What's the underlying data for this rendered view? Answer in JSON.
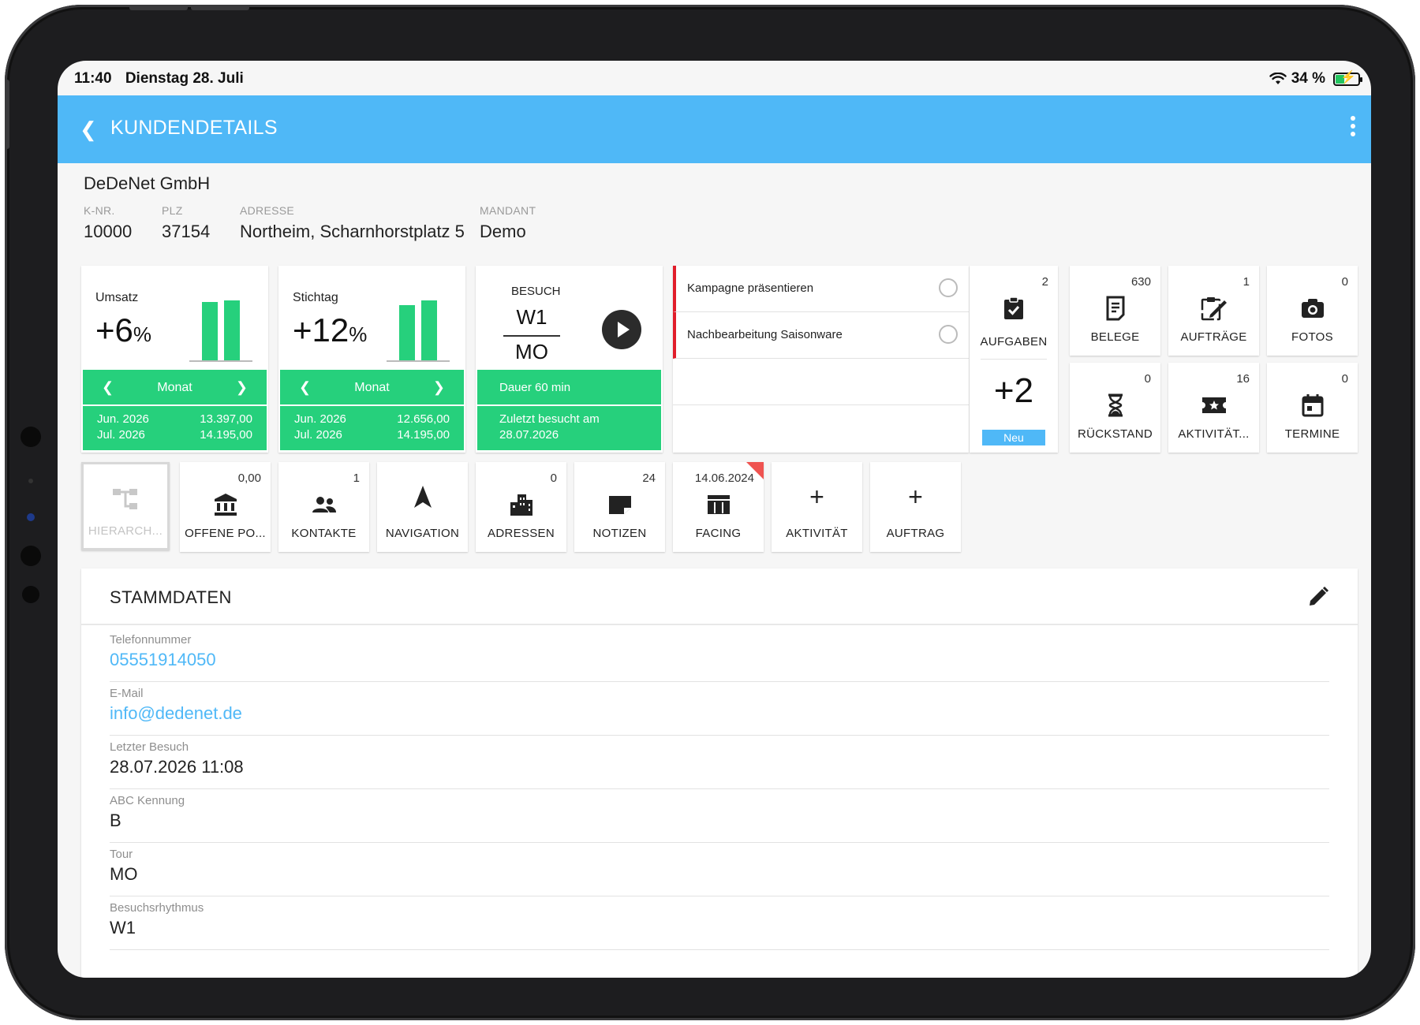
{
  "status": {
    "time": "11:40",
    "date": "Dienstag 28. Juli",
    "battery": "34 %"
  },
  "appbar": {
    "title": "KUNDENDETAILS"
  },
  "customer": {
    "name": "DeDeNet GmbH",
    "fields": [
      {
        "label": "K-NR.",
        "value": "10000"
      },
      {
        "label": "PLZ",
        "value": "37154"
      },
      {
        "label": "ADRESSE",
        "value": "Northeim, Scharnhorstplatz 5"
      },
      {
        "label": "MANDANT",
        "value": "Demo"
      }
    ]
  },
  "kpi_cards": [
    {
      "label": "Umsatz",
      "value": "+6",
      "unit": "%",
      "period": "Monat",
      "bar_heights": [
        0.82,
        0.85
      ],
      "rows": [
        {
          "period": "Jun. 2026",
          "amount": "13.397,00"
        },
        {
          "period": "Jul. 2026",
          "amount": "14.195,00"
        }
      ]
    },
    {
      "label": "Stichtag",
      "value": "+12",
      "unit": "%",
      "period": "Monat",
      "bar_heights": [
        0.78,
        0.85
      ],
      "rows": [
        {
          "period": "Jun. 2026",
          "amount": "12.656,00"
        },
        {
          "period": "Jul. 2026",
          "amount": "14.195,00"
        }
      ]
    }
  ],
  "visit": {
    "label": "BESUCH",
    "rhythm": "W1",
    "tour": "MO",
    "duration": "Dauer 60 min",
    "last_visit_label": "Zuletzt besucht am",
    "last_visit_date": "28.07.2026"
  },
  "tasks": {
    "items": [
      "Kampagne präsentieren",
      "Nachbearbeitung Saisonware"
    ],
    "count": "2",
    "label": "AUFGABEN",
    "new_count": "+2",
    "new_label": "Neu"
  },
  "tiles_top": [
    {
      "count": "630",
      "label": "BELEGE",
      "icon": "receipt-icon"
    },
    {
      "count": "1",
      "label": "AUFTRÄGE",
      "icon": "order-edit-icon"
    },
    {
      "count": "0",
      "label": "FOTOS",
      "icon": "camera-icon"
    },
    {
      "count": "0",
      "label": "RÜCKSTAND",
      "icon": "hourglass-icon"
    },
    {
      "count": "16",
      "label": "AKTIVITÄT...",
      "icon": "ticket-icon"
    },
    {
      "count": "0",
      "label": "TERMINE",
      "icon": "calendar-icon"
    }
  ],
  "tiles_bottom": [
    {
      "count": "",
      "label": "HIERARCH...",
      "icon": "hierarchy-icon"
    },
    {
      "count": "0,00",
      "label": "OFFENE PO...",
      "icon": "bank-icon"
    },
    {
      "count": "1",
      "label": "KONTAKTE",
      "icon": "contacts-icon"
    },
    {
      "count": "",
      "label": "NAVIGATION",
      "icon": "navigation-arrow-icon"
    },
    {
      "count": "0",
      "label": "ADRESSEN",
      "icon": "buildings-icon"
    },
    {
      "count": "24",
      "label": "NOTIZEN",
      "icon": "note-icon"
    },
    {
      "count": "14.06.2024",
      "label": "FACING",
      "icon": "shelf-icon"
    },
    {
      "count": "",
      "label": "AKTIVITÄT",
      "icon": "plus-icon"
    },
    {
      "count": "",
      "label": "AUFTRAG",
      "icon": "plus-icon"
    }
  ],
  "stammdaten": {
    "title": "STAMMDATEN",
    "fields": [
      {
        "label": "Telefonnummer",
        "value": "05551914050"
      },
      {
        "label": "E-Mail",
        "value": "info@dedenet.de"
      },
      {
        "label": "Letzter Besuch",
        "value": "28.07.2026 11:08"
      },
      {
        "label": "ABC Kennung",
        "value": "B"
      },
      {
        "label": "Tour",
        "value": "MO"
      },
      {
        "label": "Besuchsrhythmus",
        "value": "W1"
      }
    ]
  },
  "colors": {
    "accent": "#4fb8f7",
    "green": "#26d07c",
    "red": "#e11d2a"
  }
}
